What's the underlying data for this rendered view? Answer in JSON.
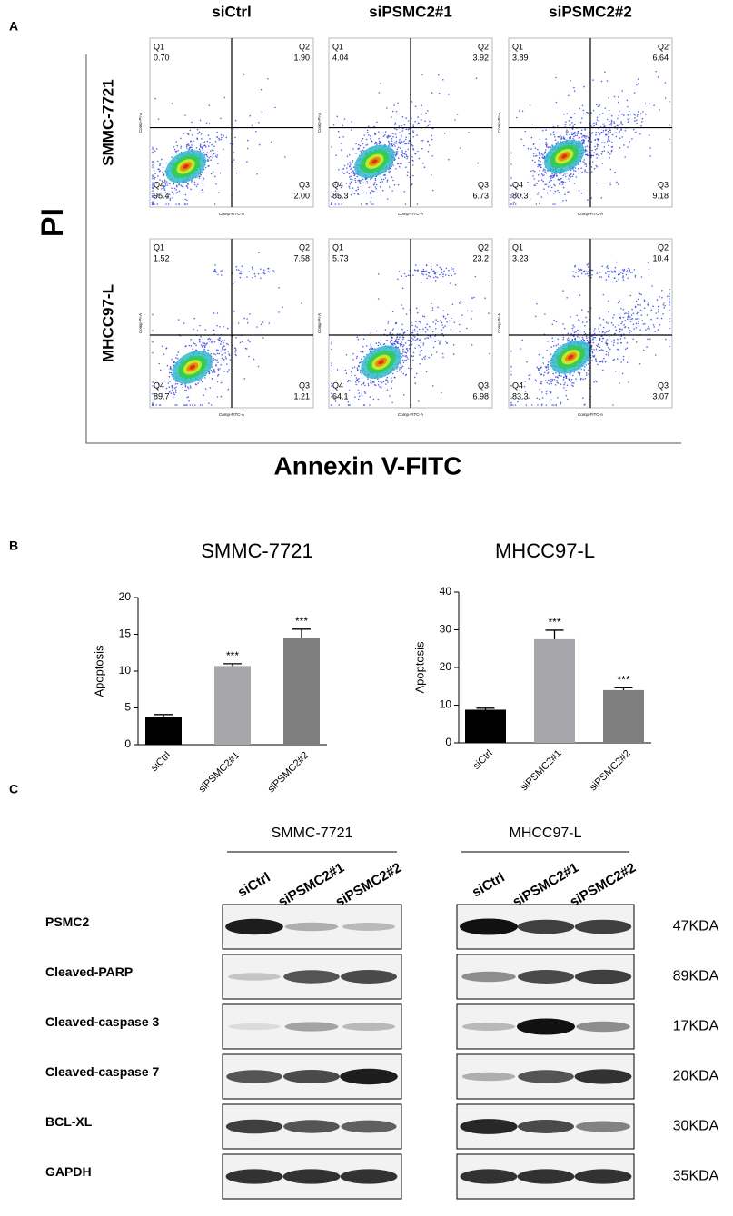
{
  "panel_labels": [
    "A",
    "B",
    "C"
  ],
  "flow": {
    "columns": [
      "siCtrl",
      "siPSMC2#1",
      "siPSMC2#2"
    ],
    "rows": [
      "SMMC-7721",
      "MHCC97-L"
    ],
    "y_axis_label": "PI",
    "x_axis_label": "Annexin V-FITC",
    "panel_x_label": "Comp-FITC-A",
    "panel_y_label": "Comp-PI-A",
    "quadrant_names": [
      "Q1",
      "Q2",
      "Q3",
      "Q4"
    ],
    "quadrants": [
      [
        [
          "0.70",
          "1.90",
          "2.00",
          "95.4"
        ],
        [
          "4.04",
          "3.92",
          "6.73",
          "85.3"
        ],
        [
          "3.89",
          "6.64",
          "9.18",
          "80.3"
        ]
      ],
      [
        [
          "1.52",
          "7.58",
          "1.21",
          "89.7"
        ],
        [
          "5.73",
          "23.2",
          "6.98",
          "64.1"
        ],
        [
          "3.23",
          "10.4",
          "3.07",
          "83.3"
        ]
      ]
    ]
  },
  "chart_data": [
    {
      "type": "bar",
      "title": "SMMC-7721",
      "ylabel": "Apoptosis",
      "categories": [
        "siCtrl",
        "siPSMC2#1",
        "siPSMC2#2"
      ],
      "values": [
        3.8,
        10.7,
        14.5
      ],
      "errors": [
        0.3,
        0.3,
        1.2
      ],
      "colors": [
        "#000000",
        "#a7a7ab",
        "#7f7f7f"
      ],
      "annotations": [
        null,
        "***",
        "***"
      ],
      "ylim": [
        0,
        20
      ],
      "yticks": [
        0,
        5,
        10,
        15,
        20
      ]
    },
    {
      "type": "bar",
      "title": "MHCC97-L",
      "ylabel": "Apoptosis",
      "categories": [
        "siCtrl",
        "siPSMC2#1",
        "siPSMC2#2"
      ],
      "values": [
        8.8,
        27.5,
        14.0
      ],
      "errors": [
        0.4,
        2.4,
        0.6
      ],
      "colors": [
        "#000000",
        "#a7a7ab",
        "#7f7f7f"
      ],
      "annotations": [
        null,
        "***",
        "***"
      ],
      "ylim": [
        0,
        40
      ],
      "yticks": [
        0,
        10,
        20,
        30,
        40
      ]
    }
  ],
  "blot": {
    "groups": [
      "SMMC-7721",
      "MHCC97-L"
    ],
    "lanes": [
      "siCtrl",
      "siPSMC2#1",
      "siPSMC2#2"
    ],
    "proteins": [
      {
        "name": "PSMC2",
        "size": "47KDA"
      },
      {
        "name": "Cleaved-PARP",
        "size": "89KDA"
      },
      {
        "name": "Cleaved-caspase 3",
        "size": "17KDA"
      },
      {
        "name": "Cleaved-caspase 7",
        "size": "20KDA"
      },
      {
        "name": "BCL-XL",
        "size": "30KDA"
      },
      {
        "name": "GAPDH",
        "size": "35KDA"
      }
    ]
  }
}
